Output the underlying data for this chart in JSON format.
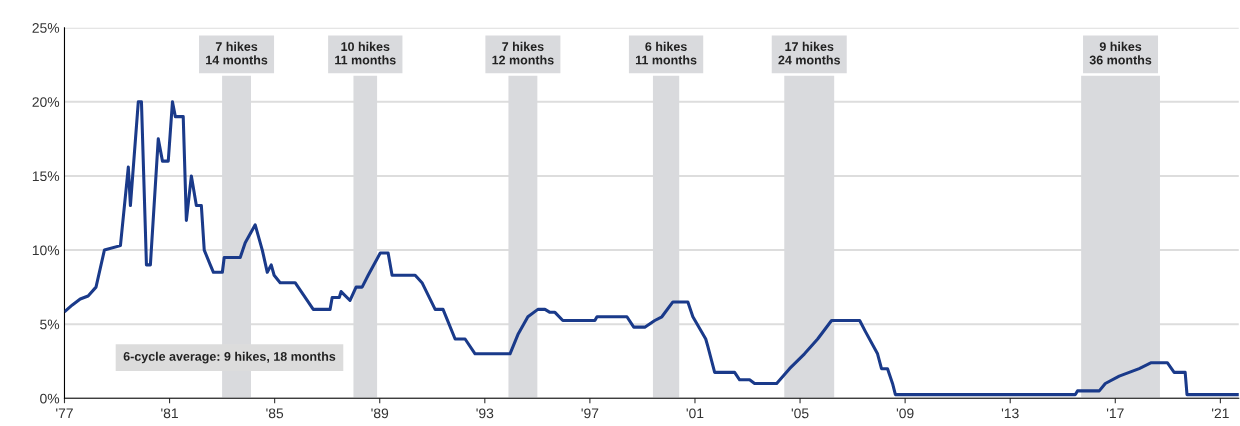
{
  "chart_data": {
    "type": "line",
    "x": [
      1977.04,
      1977.3,
      1977.6,
      1977.9,
      1978.2,
      1978.52,
      1979.13,
      1979.43,
      1979.51,
      1979.81,
      1979.93,
      1980.12,
      1980.27,
      1980.57,
      1980.73,
      1980.95,
      1981.11,
      1981.22,
      1981.52,
      1981.64,
      1981.83,
      1982.02,
      1982.21,
      1982.32,
      1982.55,
      1982.67,
      1983.01,
      1983.08,
      1983.69,
      1983.88,
      1984.26,
      1984.53,
      1984.72,
      1984.87,
      1984.98,
      1985.21,
      1985.78,
      1986.09,
      1986.47,
      1987.11,
      1987.19,
      1987.46,
      1987.53,
      1987.87,
      1988.1,
      1988.33,
      1988.56,
      1989.02,
      1989.32,
      1989.47,
      1990.35,
      1990.61,
      1991.11,
      1991.41,
      1991.87,
      1992.25,
      1992.63,
      1993.96,
      1994.26,
      1994.64,
      1995.02,
      1995.29,
      1995.48,
      1995.67,
      1995.97,
      1997.19,
      1997.27,
      1998.41,
      1998.67,
      1999.09,
      1999.47,
      1999.74,
      2000.16,
      2000.73,
      2000.92,
      2001.41,
      2001.49,
      2001.75,
      2002.51,
      2002.7,
      2003.08,
      2003.27,
      2004.11,
      2004.6,
      2005.17,
      2005.67,
      2006.2,
      2007.27,
      2007.49,
      2007.95,
      2008.1,
      2008.33,
      2008.52,
      2008.63,
      2015.48,
      2015.56,
      2016.39,
      2016.62,
      2017.15,
      2017.91,
      2018.37,
      2018.98,
      2019.24,
      2019.66,
      2019.73,
      2021.7
    ],
    "series": [
      {
        "color": "#1a3a8a",
        "values": [
          5.9,
          6.3,
          6.7,
          6.9,
          7.5,
          10.0,
          10.3,
          15.6,
          13.0,
          20.0,
          20.0,
          9.0,
          9.0,
          17.5,
          16.0,
          16.0,
          20.0,
          19.0,
          19.0,
          12.0,
          15.0,
          13.0,
          13.0,
          10.0,
          9.0,
          8.5,
          8.5,
          9.5,
          9.5,
          10.5,
          11.7,
          10.0,
          8.5,
          9.0,
          8.3,
          7.8,
          7.8,
          7.0,
          6.0,
          6.0,
          6.8,
          6.8,
          7.2,
          6.6,
          7.5,
          7.5,
          8.3,
          9.8,
          9.8,
          8.3,
          8.3,
          7.8,
          6.0,
          6.0,
          4.0,
          4.0,
          3.0,
          3.0,
          4.3,
          5.5,
          6.0,
          6.0,
          5.8,
          5.8,
          5.25,
          5.25,
          5.5,
          5.5,
          4.8,
          4.8,
          5.25,
          5.5,
          6.5,
          6.5,
          5.5,
          4.0,
          3.5,
          1.75,
          1.75,
          1.25,
          1.25,
          1.0,
          1.0,
          2.0,
          3.0,
          4.0,
          5.25,
          5.25,
          4.5,
          3.0,
          2.0,
          2.0,
          1.0,
          0.25,
          0.25,
          0.5,
          0.5,
          1.0,
          1.5,
          2.0,
          2.4,
          2.4,
          1.75,
          1.75,
          0.25,
          0.25
        ]
      }
    ],
    "xlim": [
      1977,
      2021.7
    ],
    "xticks": [
      {
        "value": 1977,
        "label": "'77"
      },
      {
        "value": 1981,
        "label": "'81"
      },
      {
        "value": 1985,
        "label": "'85"
      },
      {
        "value": 1989,
        "label": "'89"
      },
      {
        "value": 1993,
        "label": "'93"
      },
      {
        "value": 1997,
        "label": "'97"
      },
      {
        "value": 2001,
        "label": "'01"
      },
      {
        "value": 2005,
        "label": "'05"
      },
      {
        "value": 2009,
        "label": "'09"
      },
      {
        "value": 2013,
        "label": "'13"
      },
      {
        "value": 2017,
        "label": "'17"
      },
      {
        "value": 2021,
        "label": "'21"
      }
    ],
    "ylim": [
      0,
      25
    ],
    "yticks": [
      {
        "value": 0,
        "label": "0%"
      },
      {
        "value": 5,
        "label": "5%"
      },
      {
        "value": 10,
        "label": "10%"
      },
      {
        "value": 15,
        "label": "15%"
      },
      {
        "value": 20,
        "label": "20%"
      },
      {
        "value": 25,
        "label": "25%"
      }
    ],
    "grid": "y",
    "bands": [
      {
        "axis": "x",
        "from": 1983.0,
        "to": 1984.1,
        "label": "7 hikes\n14 months",
        "color": "#d9dadd"
      },
      {
        "axis": "x",
        "from": 1988.0,
        "to": 1988.9,
        "label": "10 hikes\n11 months",
        "color": "#d9dadd"
      },
      {
        "axis": "x",
        "from": 1993.9,
        "to": 1995.0,
        "label": "7 hikes\n12 months",
        "color": "#d9dadd"
      },
      {
        "axis": "x",
        "from": 1999.4,
        "to": 2000.4,
        "label": "6 hikes\n11 months",
        "color": "#d9dadd"
      },
      {
        "axis": "x",
        "from": 2004.4,
        "to": 2006.3,
        "label": "17 hikes\n24 months",
        "color": "#d9dadd"
      },
      {
        "axis": "x",
        "from": 2015.7,
        "to": 2018.7,
        "label": "9 hikes\n36 months",
        "color": "#d9dadd"
      }
    ],
    "annotations": [
      "6-cycle average: 9 hikes, 18 months"
    ]
  }
}
